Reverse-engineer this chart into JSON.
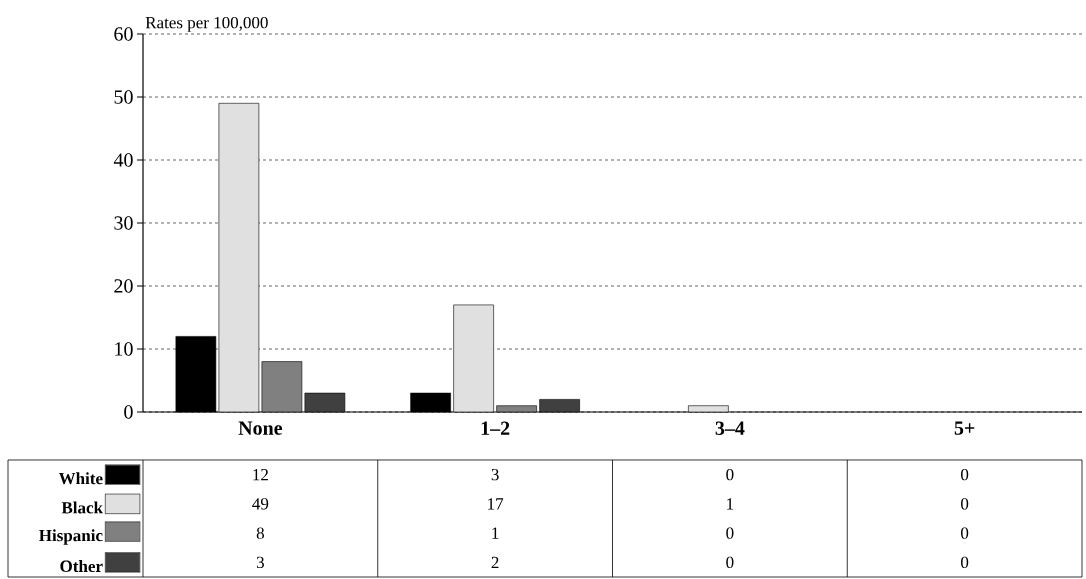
{
  "chart_data": {
    "type": "bar",
    "ylabel": "Rates per 100,000",
    "categories": [
      "None",
      "1–2",
      "3–4",
      "5+"
    ],
    "series": [
      {
        "name": "White",
        "color": "#000000",
        "values": [
          12,
          3,
          0,
          0
        ]
      },
      {
        "name": "Black",
        "color": "#e0e0e0",
        "values": [
          49,
          17,
          1,
          0
        ]
      },
      {
        "name": "Hispanic",
        "color": "#808080",
        "values": [
          8,
          1,
          0,
          0
        ]
      },
      {
        "name": "Other",
        "color": "#404040",
        "values": [
          3,
          2,
          0,
          0
        ]
      }
    ],
    "ylim": [
      0,
      60
    ],
    "yticks": [
      0,
      10,
      20,
      30,
      40,
      50,
      60
    ],
    "grid": "y",
    "legend": "bottom",
    "data_labels": true
  }
}
